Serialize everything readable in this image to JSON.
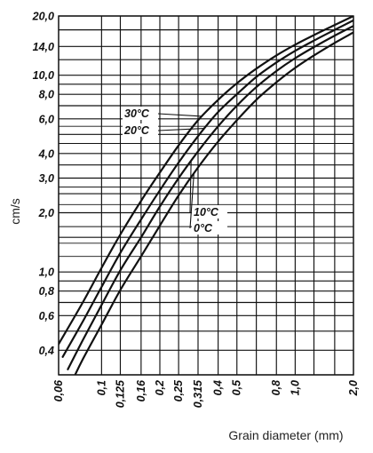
{
  "chart_data": {
    "type": "line",
    "title": "",
    "xlabel": "Grain diameter (mm)",
    "ylabel": "cm/s",
    "x_scale": "log",
    "y_scale": "log",
    "xlim": [
      0.06,
      2.0
    ],
    "ylim": [
      0.3,
      20.0
    ],
    "grid": true,
    "x_ticks": [
      0.06,
      0.1,
      0.125,
      0.16,
      0.2,
      0.25,
      0.315,
      0.4,
      0.5,
      0.63,
      0.8,
      1.0,
      1.25,
      1.6,
      2.0
    ],
    "x_tick_labels": [
      {
        "value": 0.06,
        "label": "0,06"
      },
      {
        "value": 0.1,
        "label": "0,1"
      },
      {
        "value": 0.125,
        "label": "0,125"
      },
      {
        "value": 0.16,
        "label": "0,16"
      },
      {
        "value": 0.2,
        "label": "0,2"
      },
      {
        "value": 0.25,
        "label": "0,25"
      },
      {
        "value": 0.315,
        "label": "0,315"
      },
      {
        "value": 0.4,
        "label": "0,4"
      },
      {
        "value": 0.5,
        "label": "0,5"
      },
      {
        "value": 0.8,
        "label": "0,8"
      },
      {
        "value": 1.0,
        "label": "1,0"
      },
      {
        "value": 2.0,
        "label": "2,0"
      }
    ],
    "y_ticks": [
      0.3,
      0.4,
      0.5,
      0.6,
      0.7,
      0.8,
      0.9,
      1.0,
      1.5,
      2.0,
      2.5,
      3.0,
      3.5,
      4.0,
      5.0,
      6.0,
      7.0,
      8.0,
      9.0,
      10.0,
      12.0,
      14.0,
      17.0,
      20.0
    ],
    "y_tick_labels": [
      {
        "value": 0.4,
        "label": "0,4"
      },
      {
        "value": 0.6,
        "label": "0,6"
      },
      {
        "value": 0.8,
        "label": "0,8"
      },
      {
        "value": 1.0,
        "label": "1,0"
      },
      {
        "value": 2.0,
        "label": "2,0"
      },
      {
        "value": 3.0,
        "label": "3,0"
      },
      {
        "value": 4.0,
        "label": "4,0"
      },
      {
        "value": 6.0,
        "label": "6,0"
      },
      {
        "value": 8.0,
        "label": "8,0"
      },
      {
        "value": 10.0,
        "label": "10,0"
      },
      {
        "value": 14.0,
        "label": "14,0"
      },
      {
        "value": 20.0,
        "label": "20,0"
      }
    ],
    "series": [
      {
        "name": "30°C",
        "points": [
          [
            0.06,
            0.43
          ],
          [
            0.08,
            0.7
          ],
          [
            0.1,
            1.05
          ],
          [
            0.125,
            1.55
          ],
          [
            0.16,
            2.3
          ],
          [
            0.2,
            3.2
          ],
          [
            0.25,
            4.4
          ],
          [
            0.315,
            5.9
          ],
          [
            0.4,
            7.5
          ],
          [
            0.5,
            9.1
          ],
          [
            0.63,
            10.8
          ],
          [
            0.8,
            12.6
          ],
          [
            1.0,
            14.3
          ],
          [
            1.25,
            16.0
          ],
          [
            1.6,
            18.0
          ],
          [
            2.0,
            20.0
          ]
        ]
      },
      {
        "name": "20°C",
        "points": [
          [
            0.063,
            0.37
          ],
          [
            0.08,
            0.56
          ],
          [
            0.1,
            0.84
          ],
          [
            0.125,
            1.25
          ],
          [
            0.16,
            1.85
          ],
          [
            0.2,
            2.6
          ],
          [
            0.25,
            3.6
          ],
          [
            0.315,
            4.9
          ],
          [
            0.4,
            6.5
          ],
          [
            0.5,
            8.0
          ],
          [
            0.63,
            9.8
          ],
          [
            0.8,
            11.6
          ],
          [
            1.0,
            13.3
          ],
          [
            1.25,
            15.0
          ],
          [
            1.6,
            17.0
          ],
          [
            2.0,
            19.0
          ]
        ]
      },
      {
        "name": "10°C",
        "points": [
          [
            0.067,
            0.32
          ],
          [
            0.08,
            0.45
          ],
          [
            0.1,
            0.68
          ],
          [
            0.125,
            1.02
          ],
          [
            0.16,
            1.5
          ],
          [
            0.2,
            2.15
          ],
          [
            0.25,
            3.0
          ],
          [
            0.315,
            4.1
          ],
          [
            0.4,
            5.5
          ],
          [
            0.5,
            7.0
          ],
          [
            0.63,
            8.7
          ],
          [
            0.8,
            10.5
          ],
          [
            1.0,
            12.2
          ],
          [
            1.25,
            13.9
          ],
          [
            1.6,
            15.9
          ],
          [
            2.0,
            17.8
          ]
        ]
      },
      {
        "name": "0°C",
        "points": [
          [
            0.073,
            0.3
          ],
          [
            0.08,
            0.36
          ],
          [
            0.1,
            0.54
          ],
          [
            0.125,
            0.81
          ],
          [
            0.16,
            1.2
          ],
          [
            0.2,
            1.72
          ],
          [
            0.25,
            2.45
          ],
          [
            0.315,
            3.4
          ],
          [
            0.4,
            4.6
          ],
          [
            0.5,
            5.9
          ],
          [
            0.63,
            7.5
          ],
          [
            0.8,
            9.2
          ],
          [
            1.0,
            10.9
          ],
          [
            1.25,
            12.6
          ],
          [
            1.6,
            14.6
          ],
          [
            2.0,
            16.5
          ]
        ]
      }
    ]
  }
}
